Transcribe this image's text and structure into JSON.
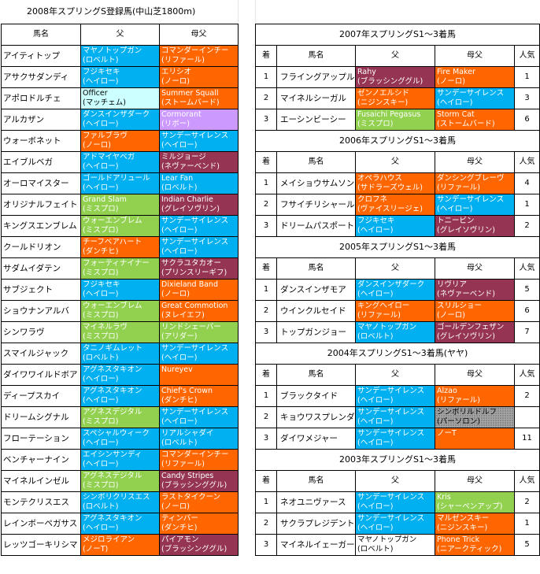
{
  "title": "2008年スプリングS登録馬(中山芝1800m)",
  "colors": {
    "blue": "#00b0f0",
    "orange": "#ff6600",
    "green": "#92d050",
    "purple": "#953553",
    "lilac": "#cc99ff",
    "pale": "#ccffff",
    "gray": "#a6a6a6"
  },
  "left_table": {
    "headers": [
      "馬名",
      "父",
      "母父"
    ],
    "rows": [
      {
        "name": "アイティトップ",
        "sire": [
          "マヤノトップガン",
          "(ロベルト)"
        ],
        "sire_c": "blue",
        "dam": [
          "コマンダーインチー",
          "(リファール)"
        ],
        "dam_c": "orange"
      },
      {
        "name": "アサクサダンディ",
        "sire": [
          "フジキセキ",
          "(ヘイロー)"
        ],
        "sire_c": "blue",
        "dam": [
          "エリシオ",
          "(ノーロ)"
        ],
        "dam_c": "orange"
      },
      {
        "name": "アポロドルチェ",
        "sire": [
          "Officer",
          "(マッチェム)"
        ],
        "sire_c": "pale",
        "dam": [
          "Summer Squall",
          "(ストームバード)"
        ],
        "dam_c": "orange"
      },
      {
        "name": "アルカザン",
        "sire": [
          "ダンスインザダーク",
          "(ヘイロー)"
        ],
        "sire_c": "blue",
        "dam": [
          "Cormorant",
          "(リボー)"
        ],
        "dam_c": "lilac"
      },
      {
        "name": "ウォーボネット",
        "sire": [
          "ファルブラヴ",
          "(ノーロ)"
        ],
        "sire_c": "orange",
        "dam": [
          "サンデーサイレンス",
          "(ヘイロー)"
        ],
        "dam_c": "blue"
      },
      {
        "name": "エイブルベガ",
        "sire": [
          "アドマイヤベガ",
          "(ヘイロー)"
        ],
        "sire_c": "blue",
        "dam": [
          "ミルジョージ",
          "(ネヴァーベンド)"
        ],
        "dam_c": "purple"
      },
      {
        "name": "オーロマイスター",
        "sire": [
          "ゴールドアリュール",
          "(ヘイロー)"
        ],
        "sire_c": "blue",
        "dam": [
          "Lear Fan",
          "(ロベルト)"
        ],
        "dam_c": "blue"
      },
      {
        "name": "オリジナルフェイト",
        "sire": [
          "Grand Slam",
          "(ミスプロ)"
        ],
        "sire_c": "green",
        "dam": [
          "Indian Charlie",
          "(グレイソヴリン)"
        ],
        "dam_c": "purple"
      },
      {
        "name": "キングスエンブレム",
        "sire": [
          "ウォーエンブレム",
          "(ミスプロ)"
        ],
        "sire_c": "green",
        "dam": [
          "サンデーサイレンス",
          "(ヘイロー)"
        ],
        "dam_c": "blue"
      },
      {
        "name": "クールドリオン",
        "sire": [
          "チーフベアハート",
          "(ダンチヒ)"
        ],
        "sire_c": "orange",
        "dam": [
          "サンデーサイレンス",
          "(ヘイロー)"
        ],
        "dam_c": "blue"
      },
      {
        "name": "サダムイダテン",
        "sire": [
          "フォーティナイナー",
          "(ミスプロ)"
        ],
        "sire_c": "green",
        "dam": [
          "サクラユタカオー",
          "(プリンスリーギフ)"
        ],
        "dam_c": "purple"
      },
      {
        "name": "サブジェクト",
        "sire": [
          "フジキセキ",
          "(ヘイロー)"
        ],
        "sire_c": "blue",
        "dam": [
          "Dixieland Band",
          "(ノーロ)"
        ],
        "dam_c": "orange"
      },
      {
        "name": "ショウナンアルバ",
        "sire": [
          "ウォーエンブレム",
          "(ミスプロ)"
        ],
        "sire_c": "green",
        "dam": [
          "Great Commotion",
          "(ヌレイエフ)"
        ],
        "dam_c": "orange"
      },
      {
        "name": "シンワラヴ",
        "sire": [
          "マイネルラヴ",
          "(ミスプロ)"
        ],
        "sire_c": "green",
        "dam": [
          "リンドシェーバー",
          "(アリダー)"
        ],
        "dam_c": "green"
      },
      {
        "name": "スマイルジャック",
        "sire": [
          "タニノギムレット",
          "(ロベルト)"
        ],
        "sire_c": "blue",
        "dam": [
          "サンデーサイレンス",
          "(ヘイロー)"
        ],
        "dam_c": "blue"
      },
      {
        "name": "ダイワワイルドボア",
        "sire": [
          "アグネスタキオン",
          "(ヘイロー)"
        ],
        "sire_c": "blue",
        "dam": [
          "Nureyev",
          ""
        ],
        "dam_c": "orange"
      },
      {
        "name": "ディープスカイ",
        "sire": [
          "アグネスタキオン",
          "(ヘイロー)"
        ],
        "sire_c": "blue",
        "dam": [
          "Chief's Crown",
          "(ダンチヒ)"
        ],
        "dam_c": "orange"
      },
      {
        "name": "ドリームシグナル",
        "sire": [
          "アグネスデジタル",
          "(ミスプロ)"
        ],
        "sire_c": "green",
        "dam": [
          "サンデーサイレンス",
          "(ヘイロー)"
        ],
        "dam_c": "blue"
      },
      {
        "name": "フローテーション",
        "sire": [
          "スペシャルウィーク",
          "(ヘイロー)"
        ],
        "sire_c": "blue",
        "dam": [
          "リアルシャダイ",
          "(ロベルト)"
        ],
        "dam_c": "blue"
      },
      {
        "name": "ベンチャーナイン",
        "sire": [
          "エイシンサンディ",
          "(ヘイロー)"
        ],
        "sire_c": "blue",
        "dam": [
          "コマンダーインチー",
          "(リファール)"
        ],
        "dam_c": "orange"
      },
      {
        "name": "マイネルインゼル",
        "sire": [
          "アグネスデジタル",
          "(ミスプロ)"
        ],
        "sire_c": "green",
        "dam": [
          "Candy Stripes",
          "(ブラッシンググル)"
        ],
        "dam_c": "purple"
      },
      {
        "name": "モンテクリスエス",
        "sire": [
          "シンボリクリスエス",
          "(ロベルト)"
        ],
        "sire_c": "blue",
        "dam": [
          "ラストタイクーン",
          "(ノーロ)"
        ],
        "dam_c": "orange"
      },
      {
        "name": "レインボーペガサス",
        "sire": [
          "アグネスタキオン",
          "(ヘイロー)"
        ],
        "sire_c": "blue",
        "dam": [
          "ティンバー",
          "(ダンチヒ)"
        ],
        "dam_c": "orange"
      },
      {
        "name": "レッツゴーキリシマ",
        "sire": [
          "メジロライアン",
          "(ノーT)"
        ],
        "sire_c": "orange",
        "dam": [
          "パイアモン",
          "(ブラッシンググル)"
        ],
        "dam_c": "purple"
      }
    ]
  },
  "right_sections": [
    {
      "heading": "2007年スプリングS1～3着馬",
      "headers": [
        "着",
        "馬名",
        "父",
        "母父",
        "人気"
      ],
      "rows": [
        {
          "rank": "1",
          "name": "フライングアップル",
          "sire": [
            "Rahy",
            "(ブラッシンググル)"
          ],
          "sire_c": "purple",
          "dam": [
            "Fire Maker",
            "(ノーロ)"
          ],
          "dam_c": "orange",
          "pop": "1"
        },
        {
          "rank": "2",
          "name": "マイネルシーガル",
          "sire": [
            "ゼンノエルシド",
            "(ニジンスキー)"
          ],
          "sire_c": "orange",
          "dam": [
            "サンデーサイレンス",
            "(ヘイロー)"
          ],
          "dam_c": "blue",
          "pop": "3"
        },
        {
          "rank": "3",
          "name": "エーシンビーシー",
          "sire": [
            "Fusaichi Pegasus",
            "(ミスプロ)"
          ],
          "sire_c": "green",
          "dam": [
            "Storm Cat",
            "(ストームバード)"
          ],
          "dam_c": "orange",
          "pop": "6"
        }
      ]
    },
    {
      "heading": "2006年スプリングS1～3着馬",
      "headers": [
        "着",
        "馬名",
        "父",
        "母父",
        "人気"
      ],
      "rows": [
        {
          "rank": "1",
          "name": "メイショウサムソン",
          "sire": [
            "オペラハウス",
            "(サドラーズウェル)"
          ],
          "sire_c": "orange",
          "dam": [
            "ダンシングブレーヴ",
            "(リファール)"
          ],
          "dam_c": "orange",
          "pop": "4"
        },
        {
          "rank": "2",
          "name": "フサイチリシャール",
          "sire": [
            "クロフネ",
            "(ヴァイスリージェ)"
          ],
          "sire_c": "orange",
          "dam": [
            "サンデーサイレンス",
            "(ヘイロー)"
          ],
          "dam_c": "blue",
          "pop": "1"
        },
        {
          "rank": "3",
          "name": "ドリームパスポート",
          "sire": [
            "フジキセキ",
            "(ヘイロー)"
          ],
          "sire_c": "blue",
          "dam": [
            "トニービン",
            "(グレイソヴリン)"
          ],
          "dam_c": "purple",
          "pop": "2"
        }
      ]
    },
    {
      "heading": "2005年スプリングS1～3着馬",
      "headers": [
        "着",
        "馬名",
        "父",
        "母父",
        "人気"
      ],
      "rows": [
        {
          "rank": "1",
          "name": "ダンスインザモア",
          "sire": [
            "ダンスインザダーク",
            "(ヘイロー)"
          ],
          "sire_c": "blue",
          "dam": [
            "リヴリア",
            "(ネヴァーベンド)"
          ],
          "dam_c": "purple",
          "pop": "5"
        },
        {
          "rank": "2",
          "name": "ウインクルセイド",
          "sire": [
            "キングヘイロー",
            "(リファール)"
          ],
          "sire_c": "orange",
          "dam": [
            "スリルショー",
            "(ノーロ)"
          ],
          "dam_c": "orange",
          "pop": "6"
        },
        {
          "rank": "3",
          "name": "トップガンジョー",
          "sire": [
            "マヤノトップガン",
            "(ロベルト)"
          ],
          "sire_c": "blue",
          "dam": [
            "ゴールデンフェザン",
            "(グレイソヴリン)"
          ],
          "dam_c": "purple",
          "pop": "7"
        }
      ]
    },
    {
      "heading": "2004年スプリングS1～3着馬(ヤヤ)",
      "headers": [
        "着",
        "馬名",
        "父",
        "母父",
        "人気"
      ],
      "rows": [
        {
          "rank": "1",
          "name": "ブラックタイド",
          "sire": [
            "サンデーサイレンス",
            "(ヘイロー)"
          ],
          "sire_c": "blue",
          "dam": [
            "Alzao",
            "(リファール)"
          ],
          "dam_c": "orange",
          "pop": "2"
        },
        {
          "rank": "2",
          "name": "キョウワスプレンダ",
          "sire": [
            "サンデーサイレンス",
            "(ヘイロー)"
          ],
          "sire_c": "blue",
          "dam": [
            "シンボリルドルフ",
            "(パーソロン)"
          ],
          "dam_c": "gray",
          "pop": ""
        },
        {
          "rank": "3",
          "name": "ダイワメジャー",
          "sire": [
            "サンデーサイレンス",
            "(ヘイロー)"
          ],
          "sire_c": "blue",
          "dam": [
            "ノーT",
            ""
          ],
          "dam_c": "orange",
          "pop": "11"
        }
      ]
    },
    {
      "heading": "2003年スプリングS1～3着馬",
      "headers": [
        "着",
        "馬名",
        "父",
        "母父",
        "人気"
      ],
      "rows": [
        {
          "rank": "1",
          "name": "ネオユニヴァース",
          "sire": [
            "サンデーサイレンス",
            "(ヘイロー)"
          ],
          "sire_c": "blue",
          "dam": [
            "Kris",
            "(シャーペンアップ)"
          ],
          "dam_c": "green",
          "pop": "2"
        },
        {
          "rank": "2",
          "name": "サクラプレジデント",
          "sire": [
            "サンデーサイレンス",
            "(ヘイロー)"
          ],
          "sire_c": "blue",
          "dam": [
            "マルゼンスキー",
            "(ニジンスキー)"
          ],
          "dam_c": "orange",
          "pop": "1"
        },
        {
          "rank": "3",
          "name": "マイネルイェーガー",
          "sire": [
            "マヤノトップガン",
            "(ロベルト)"
          ],
          "sire_c": "none",
          "dam": [
            "Phone Trick",
            "(ニアークティック)"
          ],
          "dam_c": "orange",
          "pop": "5"
        }
      ]
    }
  ]
}
